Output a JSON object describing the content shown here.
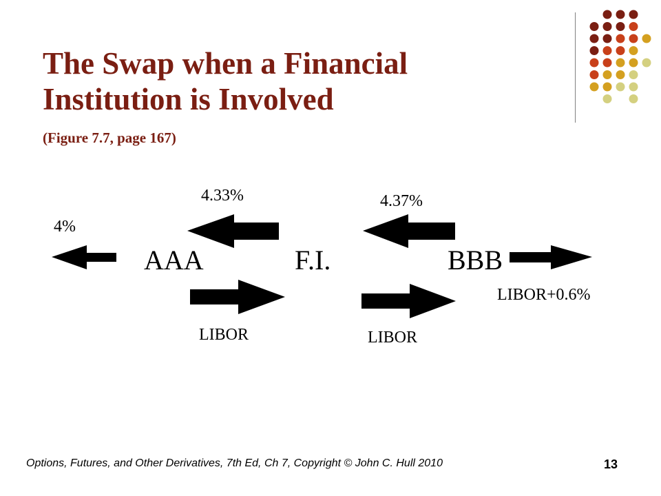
{
  "slide": {
    "title": "The Swap when a Financial Institution is Involved",
    "subtitle": "(Figure 7.7, page 167)",
    "footer": "Options, Futures, and Other Derivatives, 7th Ed, Ch 7, Copyright © John C. Hull 2010",
    "page_number": "13"
  },
  "diagram": {
    "parties": {
      "aaa": "AAA",
      "fi": "F.I.",
      "bbb": "BBB"
    },
    "flows": {
      "aaa_outside": "4%",
      "fi_to_aaa": "4.33%",
      "bbb_to_fi": "4.37%",
      "aaa_to_fi": "LIBOR",
      "fi_to_bbb": "LIBOR",
      "bbb_outside": "LIBOR+0.6%"
    }
  },
  "colors": {
    "title": "#7a1e12",
    "dot_dark_red": "#7a1e12",
    "dot_orange": "#c8401a",
    "dot_gold": "#d4a020",
    "dot_pale": "#d4d080"
  }
}
